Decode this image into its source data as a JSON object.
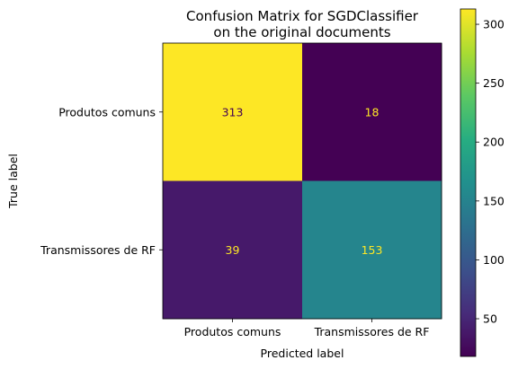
{
  "chart_data": {
    "type": "heatmap",
    "title": [
      "Confusion Matrix for SGDClassifier",
      "on the original documents"
    ],
    "xlabel": "Predicted label",
    "ylabel": "True label",
    "x_categories": [
      "Produtos comuns",
      "Transmissores de RF"
    ],
    "y_categories": [
      "Produtos comuns",
      "Transmissores de RF"
    ],
    "matrix": [
      [
        313,
        18
      ],
      [
        39,
        153
      ]
    ],
    "value_range": [
      18,
      313
    ],
    "colormap": "viridis",
    "colorbar": {
      "ticks": [
        50,
        100,
        150,
        200,
        250,
        300
      ]
    },
    "text_colors": {
      "on_light": "#440154",
      "on_dark": "#fde725"
    }
  }
}
